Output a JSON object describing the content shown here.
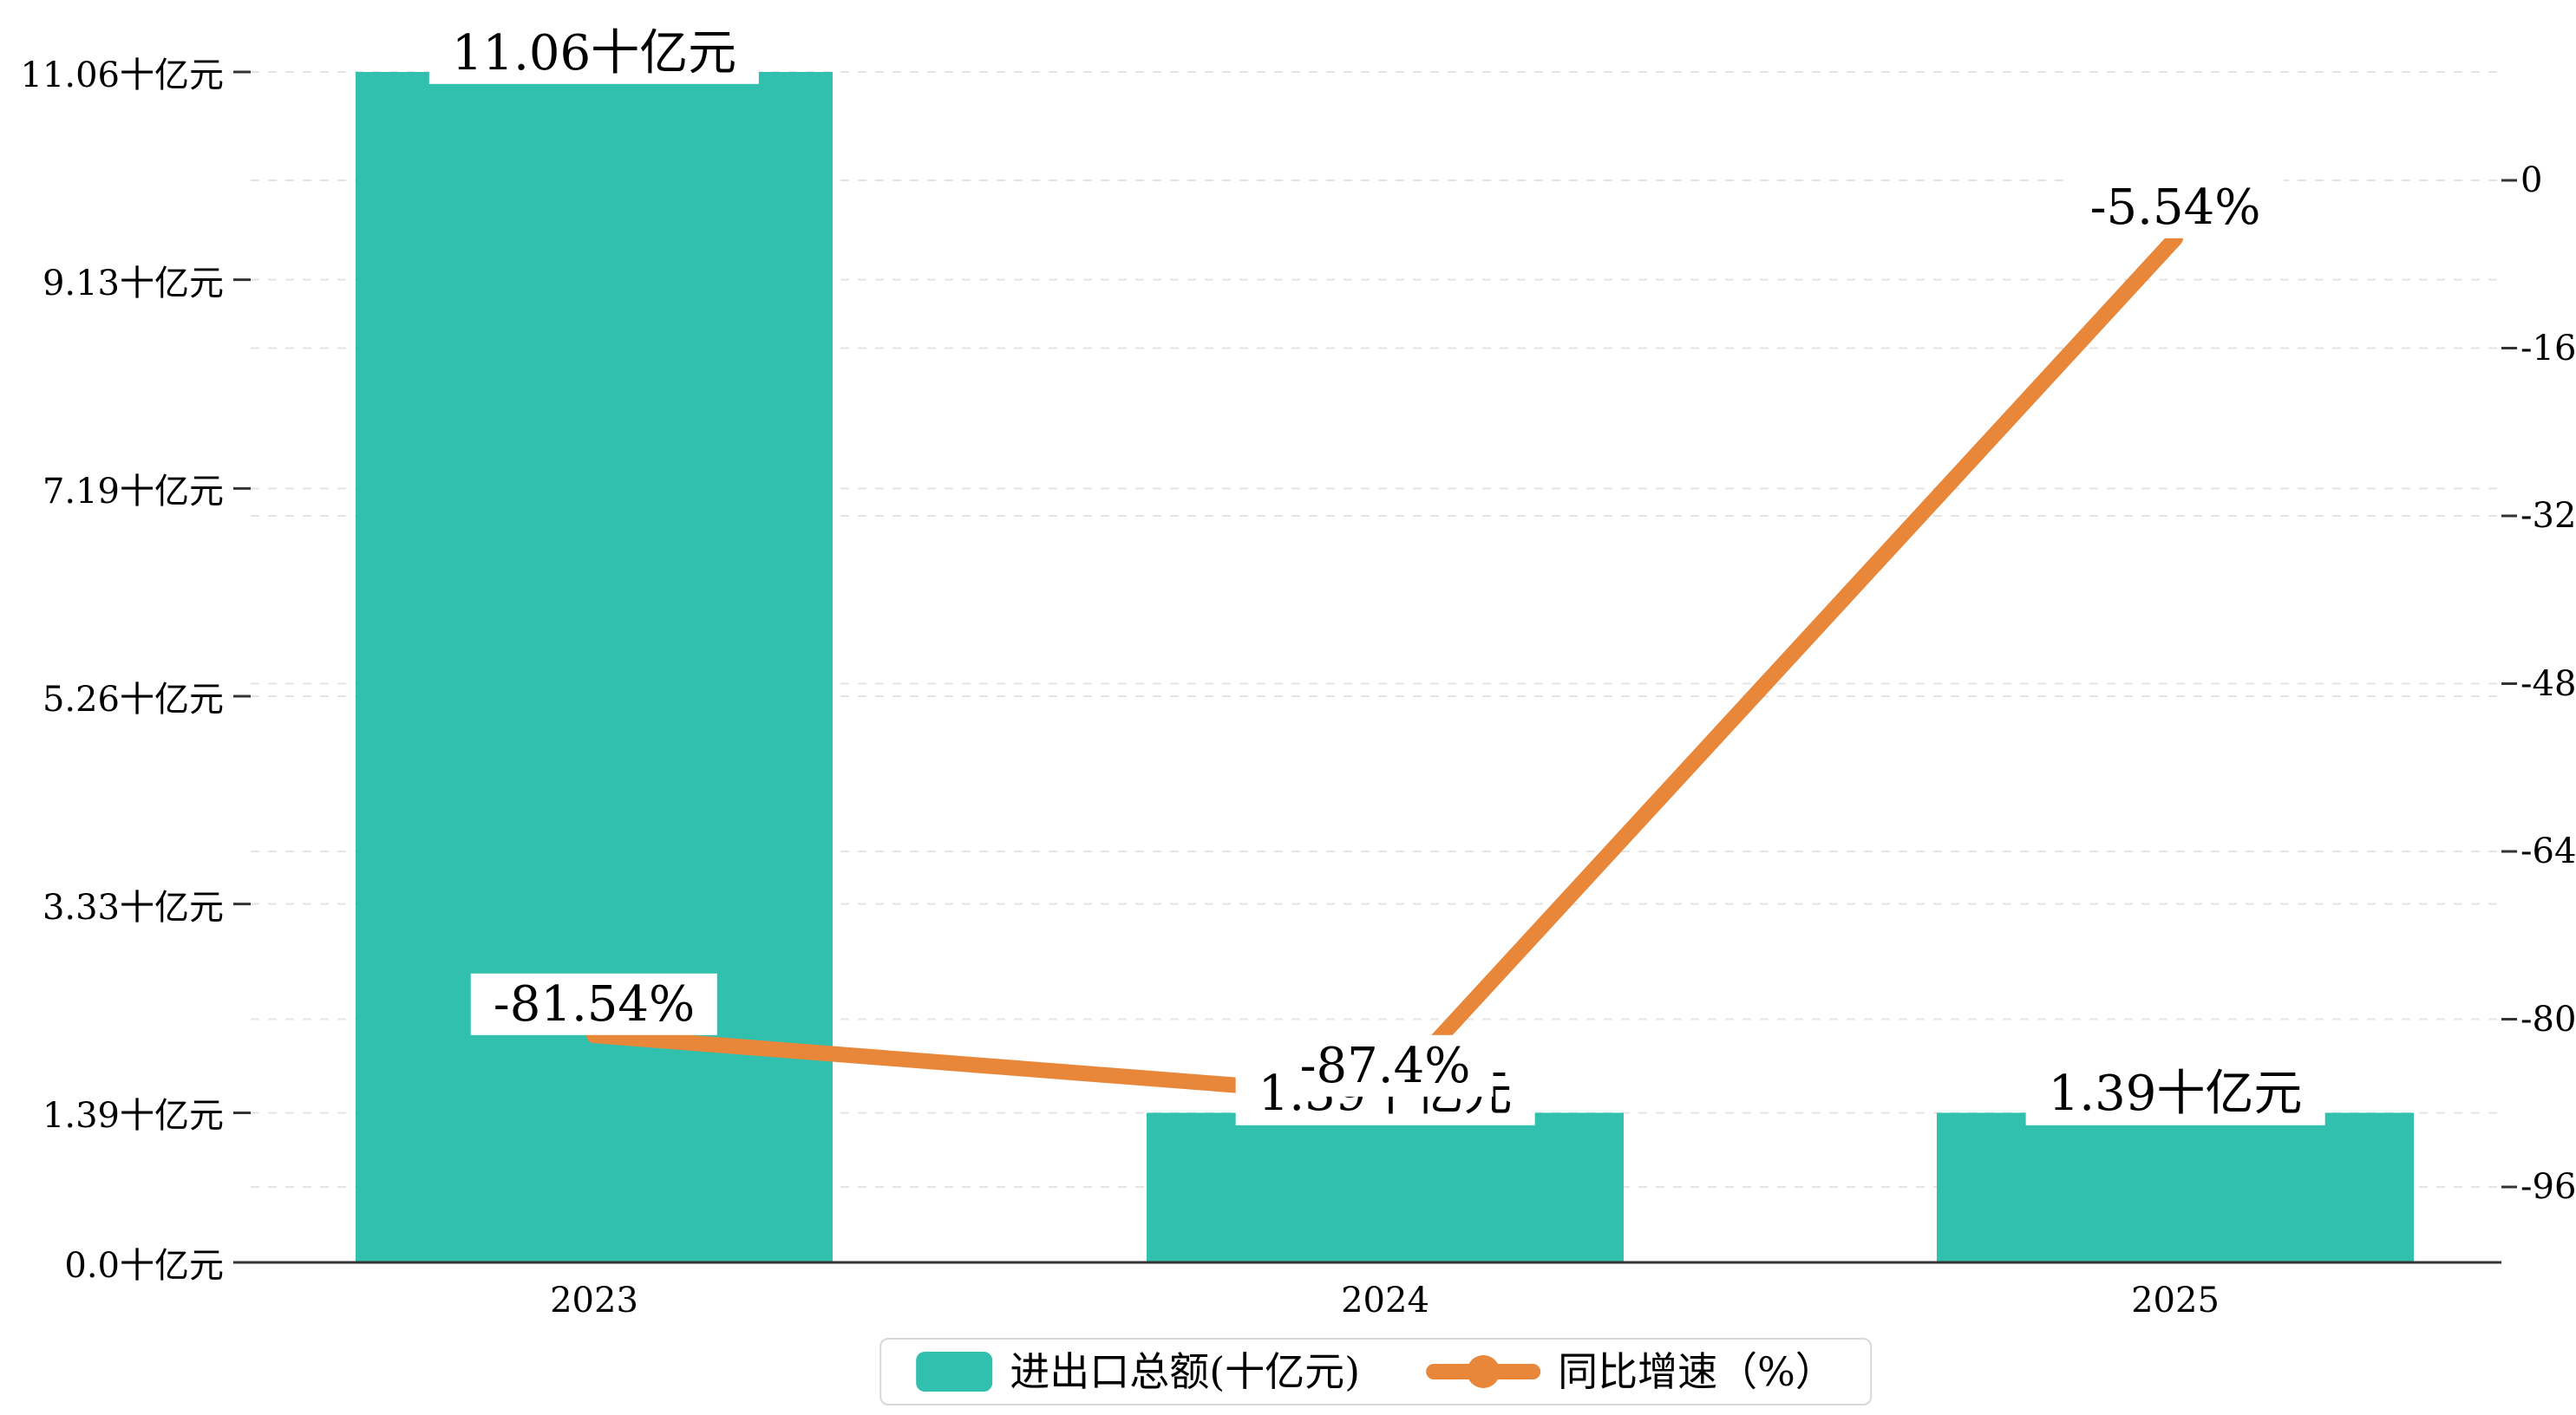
{
  "colors": {
    "bar": "#31BFAE",
    "line": "#E8873A",
    "axis": "#333333",
    "grid": "#E4E4E4",
    "text": "#000000",
    "background": "#FFFFFF"
  },
  "chart_data": {
    "type": "bar+line",
    "categories": [
      "2023",
      "2024",
      "2025"
    ],
    "series": [
      {
        "name": "进出口总额(十亿元)",
        "type": "bar",
        "axis": "left",
        "color": "#31BFAE",
        "values": [
          11.06,
          1.39,
          1.39
        ],
        "labels": [
          "11.06十亿元",
          "1.39十亿元",
          "1.39十亿元"
        ]
      },
      {
        "name": "同比增速（%）",
        "type": "line",
        "axis": "right",
        "color": "#E8873A",
        "values": [
          -81.54,
          -87.4,
          -5.54
        ],
        "labels": [
          "-81.54%",
          "-87.4%",
          "-5.54%"
        ]
      }
    ],
    "left_axis": {
      "min": 0,
      "max": 11.06,
      "ticks": [
        0,
        1.39,
        3.33,
        5.26,
        7.19,
        9.13,
        11.06
      ],
      "tick_labels": [
        "0.0十亿元",
        "1.39十亿元",
        "3.33十亿元",
        "5.26十亿元",
        "7.19十亿元",
        "9.13十亿元",
        "11.06十亿元"
      ]
    },
    "right_axis": {
      "min": -96,
      "max": 0,
      "ticks": [
        0,
        -16,
        -32,
        -48,
        -64,
        -80,
        -96
      ],
      "tick_labels": [
        "0",
        "-16",
        "-32",
        "-48",
        "-64",
        "-80",
        "-96"
      ]
    },
    "grid": "horizontal-dashed",
    "legend_position": "bottom-center"
  },
  "legend": {
    "items": [
      {
        "label": "进出口总额(十亿元)",
        "marker": "bar-swatch",
        "color": "#31BFAE"
      },
      {
        "label": "同比增速（%）",
        "marker": "line-dot",
        "color": "#E8873A"
      }
    ]
  }
}
